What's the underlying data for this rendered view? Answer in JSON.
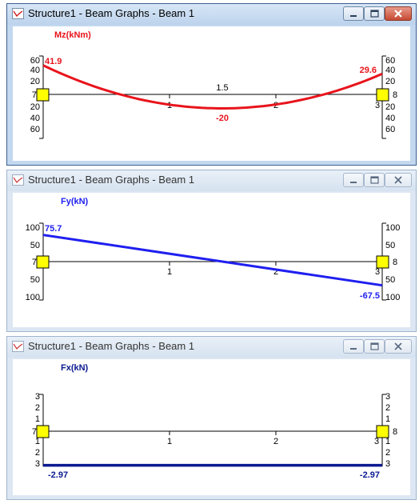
{
  "windows": [
    {
      "title": "Structure1 - Beam Graphs - Beam 1",
      "state": "active",
      "graph": {
        "label": "Mz(kNm)",
        "color": "#e8141c",
        "left_ticks": [
          "60",
          "40",
          "20",
          "7",
          "20",
          "40",
          "60"
        ],
        "right_ticks": [
          "60",
          "40",
          "20",
          "8",
          "20",
          "40",
          "60"
        ],
        "x_ticks": [
          "1",
          "2",
          "3"
        ],
        "mid_label": "1.5",
        "start_value": "41.9",
        "end_value": "29.6",
        "extreme_value": "-20"
      }
    },
    {
      "title": "Structure1 - Beam Graphs - Beam 1",
      "state": "inactive",
      "graph": {
        "label": "Fy(kN)",
        "color": "#1f1ff0",
        "left_ticks": [
          "100",
          "50",
          "7",
          "50",
          "100"
        ],
        "right_ticks": [
          "100",
          "50",
          "8",
          "50",
          "100"
        ],
        "x_ticks": [
          "1",
          "2",
          "3"
        ],
        "start_value": "75.7",
        "end_value": "-67.5"
      }
    },
    {
      "title": "Structure1 - Beam Graphs - Beam 1",
      "state": "inactive",
      "graph": {
        "label": "Fx(kN)",
        "color": "#0a1a8f",
        "left_ticks": [
          "3",
          "2",
          "1",
          "7",
          "1",
          "2",
          "3"
        ],
        "right_ticks": [
          "3",
          "2",
          "1",
          "8",
          "1",
          "2",
          "3"
        ],
        "x_ticks": [
          "1",
          "2",
          "3"
        ],
        "start_value": "-2.97",
        "end_value": "-2.97"
      }
    }
  ],
  "chart_data": [
    {
      "type": "line",
      "title": "Mz(kNm)",
      "x": [
        0,
        1.5,
        3
      ],
      "values": [
        41.9,
        -20,
        29.6
      ],
      "ylim": [
        -60,
        60
      ],
      "xlim": [
        0,
        3
      ]
    },
    {
      "type": "line",
      "title": "Fy(kN)",
      "x": [
        0,
        3
      ],
      "values": [
        75.7,
        -67.5
      ],
      "ylim": [
        -100,
        100
      ],
      "xlim": [
        0,
        3
      ]
    },
    {
      "type": "line",
      "title": "Fx(kN)",
      "x": [
        0,
        3
      ],
      "values": [
        -2.97,
        -2.97
      ],
      "ylim": [
        -3,
        3
      ],
      "xlim": [
        0,
        3
      ]
    }
  ]
}
